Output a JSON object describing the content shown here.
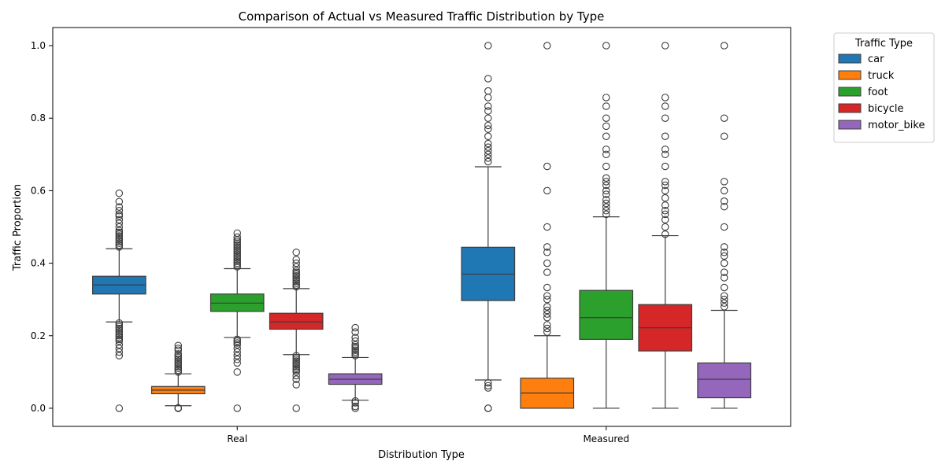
{
  "chart_data": {
    "type": "boxplot",
    "title": "Comparison of Actual vs Measured Traffic Distribution by Type",
    "xlabel": "Distribution Type",
    "ylabel": "Traffic Proportion",
    "ylim": [
      -0.05,
      1.05
    ],
    "yticks": [
      "0.0",
      "0.2",
      "0.4",
      "0.6",
      "0.8",
      "1.0"
    ],
    "grid": false,
    "legend": {
      "title": "Traffic Type",
      "placement": "outside-top-right"
    },
    "categories": [
      "Real",
      "Measured"
    ],
    "series": [
      {
        "name": "car",
        "color": "#1f77b4",
        "stats": [
          {
            "whislo": 0.238,
            "q1": 0.315,
            "med": 0.34,
            "q3": 0.364,
            "whishi": 0.44,
            "fliers": [
              0.0,
              0.145,
              0.155,
              0.165,
              0.175,
              0.185,
              0.19,
              0.195,
              0.2,
              0.205,
              0.21,
              0.215,
              0.22,
              0.225,
              0.23,
              0.235,
              0.445,
              0.45,
              0.455,
              0.46,
              0.465,
              0.47,
              0.475,
              0.48,
              0.485,
              0.49,
              0.5,
              0.51,
              0.52,
              0.53,
              0.535,
              0.545,
              0.555,
              0.57,
              0.593
            ]
          },
          {
            "whislo": 0.078,
            "q1": 0.297,
            "med": 0.37,
            "q3": 0.444,
            "whishi": 0.666,
            "fliers": [
              0.0,
              0.0,
              0.056,
              0.062,
              0.07,
              0.68,
              0.69,
              0.7,
              0.71,
              0.72,
              0.73,
              0.75,
              0.77,
              0.78,
              0.8,
              0.82,
              0.833,
              0.857,
              0.875,
              0.909,
              1.0
            ]
          }
        ]
      },
      {
        "name": "truck",
        "color": "#ff7f0e",
        "stats": [
          {
            "whislo": 0.007,
            "q1": 0.04,
            "med": 0.05,
            "q3": 0.06,
            "whishi": 0.095,
            "fliers": [
              0.0,
              0.0,
              0.001,
              0.1,
              0.105,
              0.11,
              0.115,
              0.12,
              0.125,
              0.13,
              0.135,
              0.14,
              0.145,
              0.15,
              0.16,
              0.165,
              0.173
            ]
          },
          {
            "whislo": 0.0,
            "q1": 0.0,
            "med": 0.042,
            "q3": 0.083,
            "whishi": 0.2,
            "fliers": [
              0.21,
              0.22,
              0.23,
              0.25,
              0.26,
              0.27,
              0.28,
              0.3,
              0.31,
              0.333,
              0.375,
              0.4,
              0.43,
              0.445,
              0.5,
              0.6,
              0.667,
              1.0
            ]
          }
        ]
      },
      {
        "name": "foot",
        "color": "#2ca02c",
        "stats": [
          {
            "whislo": 0.195,
            "q1": 0.267,
            "med": 0.29,
            "q3": 0.315,
            "whishi": 0.385,
            "fliers": [
              0.0,
              0.1,
              0.125,
              0.135,
              0.145,
              0.155,
              0.165,
              0.175,
              0.18,
              0.185,
              0.19,
              0.39,
              0.395,
              0.4,
              0.405,
              0.41,
              0.415,
              0.42,
              0.425,
              0.43,
              0.435,
              0.44,
              0.445,
              0.45,
              0.455,
              0.46,
              0.465,
              0.472,
              0.483
            ]
          },
          {
            "whislo": 0.0,
            "q1": 0.19,
            "med": 0.25,
            "q3": 0.325,
            "whishi": 0.528,
            "fliers": [
              0.535,
              0.545,
              0.555,
              0.565,
              0.575,
              0.59,
              0.6,
              0.615,
              0.625,
              0.635,
              0.667,
              0.7,
              0.714,
              0.75,
              0.778,
              0.8,
              0.833,
              0.857,
              1.0
            ]
          }
        ]
      },
      {
        "name": "bicycle",
        "color": "#d62728",
        "stats": [
          {
            "whislo": 0.148,
            "q1": 0.218,
            "med": 0.238,
            "q3": 0.262,
            "whishi": 0.33,
            "fliers": [
              0.0,
              0.065,
              0.08,
              0.09,
              0.1,
              0.105,
              0.11,
              0.115,
              0.12,
              0.125,
              0.13,
              0.135,
              0.14,
              0.145,
              0.335,
              0.34,
              0.345,
              0.35,
              0.355,
              0.36,
              0.365,
              0.37,
              0.375,
              0.38,
              0.39,
              0.4,
              0.41,
              0.43
            ]
          },
          {
            "whislo": 0.0,
            "q1": 0.158,
            "med": 0.222,
            "q3": 0.286,
            "whishi": 0.476,
            "fliers": [
              0.48,
              0.5,
              0.52,
              0.535,
              0.545,
              0.56,
              0.58,
              0.6,
              0.615,
              0.625,
              0.667,
              0.7,
              0.714,
              0.75,
              0.8,
              0.833,
              0.857,
              1.0
            ]
          }
        ]
      },
      {
        "name": "motor_bike",
        "color": "#9467bd",
        "stats": [
          {
            "whislo": 0.022,
            "q1": 0.066,
            "med": 0.08,
            "q3": 0.095,
            "whishi": 0.14,
            "fliers": [
              0.0,
              0.005,
              0.015,
              0.02,
              0.145,
              0.15,
              0.155,
              0.16,
              0.165,
              0.17,
              0.175,
              0.185,
              0.195,
              0.21,
              0.222
            ]
          },
          {
            "whislo": 0.0,
            "q1": 0.029,
            "med": 0.08,
            "q3": 0.125,
            "whishi": 0.27,
            "fliers": [
              0.28,
              0.29,
              0.3,
              0.31,
              0.333,
              0.36,
              0.375,
              0.4,
              0.42,
              0.43,
              0.445,
              0.5,
              0.556,
              0.571,
              0.6,
              0.625,
              0.75,
              0.8,
              1.0
            ]
          }
        ]
      }
    ]
  }
}
